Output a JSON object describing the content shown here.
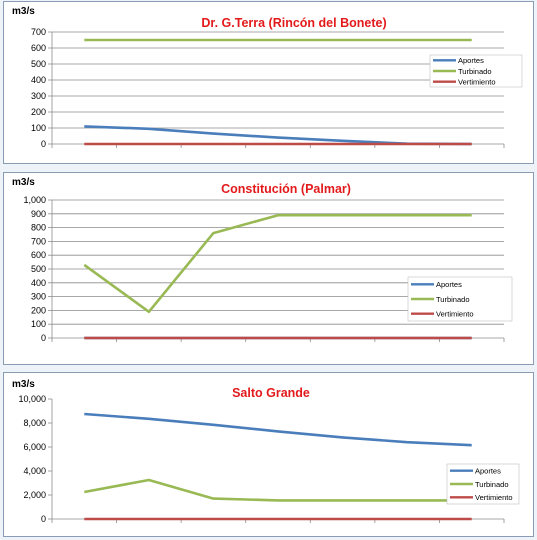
{
  "colors": {
    "Aportes": "#4a7ebb",
    "Turbinado": "#98b954",
    "Vertimiento": "#be4b48",
    "title": "#e31a1c"
  },
  "chart_data": [
    {
      "type": "line",
      "title": "Dr. G.Terra (Rincón del Bonete)",
      "ylabel": "m3/s",
      "ylim": [
        0,
        700
      ],
      "yticks": [
        0,
        100,
        200,
        300,
        400,
        500,
        600,
        700
      ],
      "ytick_labels": [
        "0",
        "100",
        "200",
        "300",
        "400",
        "500",
        "600",
        "700"
      ],
      "x": [
        1,
        2,
        3,
        4,
        5,
        6,
        7
      ],
      "grid": true,
      "legend": "right",
      "series": [
        {
          "name": "Aportes",
          "values": [
            110,
            95,
            65,
            40,
            20,
            2,
            0
          ]
        },
        {
          "name": "Turbinado",
          "values": [
            650,
            650,
            650,
            650,
            650,
            650,
            650
          ]
        },
        {
          "name": "Vertimiento",
          "values": [
            0,
            0,
            0,
            0,
            0,
            0,
            0
          ]
        }
      ]
    },
    {
      "type": "line",
      "title": "Constitución (Palmar)",
      "ylabel": "m3/s",
      "ylim": [
        0,
        1000
      ],
      "yticks": [
        0,
        100,
        200,
        300,
        400,
        500,
        600,
        700,
        800,
        900,
        1000
      ],
      "ytick_labels": [
        "0",
        "100",
        "200",
        "300",
        "400",
        "500",
        "600",
        "700",
        "800",
        "900",
        "1,000"
      ],
      "x": [
        1,
        2,
        3,
        4,
        5,
        6,
        7
      ],
      "grid": true,
      "legend": "bottom-right",
      "series": [
        {
          "name": "Aportes",
          "values": [
            0,
            0,
            0,
            0,
            0,
            0,
            0
          ]
        },
        {
          "name": "Turbinado",
          "values": [
            530,
            190,
            760,
            890,
            890,
            890,
            890
          ]
        },
        {
          "name": "Vertimiento",
          "values": [
            0,
            0,
            0,
            0,
            0,
            0,
            0
          ]
        }
      ]
    },
    {
      "type": "line",
      "title": "Salto Grande",
      "ylabel": "m3/s",
      "ylim": [
        0,
        10000
      ],
      "yticks": [
        0,
        2000,
        4000,
        6000,
        8000,
        10000
      ],
      "ytick_labels": [
        "0",
        "2,000",
        "4,000",
        "6,000",
        "8,000",
        "10,000"
      ],
      "x": [
        1,
        2,
        3,
        4,
        5,
        6,
        7
      ],
      "grid": false,
      "legend": "bottom-right",
      "series": [
        {
          "name": "Aportes",
          "values": [
            8750,
            8350,
            7850,
            7300,
            6800,
            6400,
            6150
          ]
        },
        {
          "name": "Turbinado",
          "values": [
            2250,
            3250,
            1700,
            1550,
            1550,
            1550,
            1550
          ]
        },
        {
          "name": "Vertimiento",
          "values": [
            0,
            0,
            0,
            0,
            0,
            0,
            0
          ]
        }
      ]
    }
  ]
}
